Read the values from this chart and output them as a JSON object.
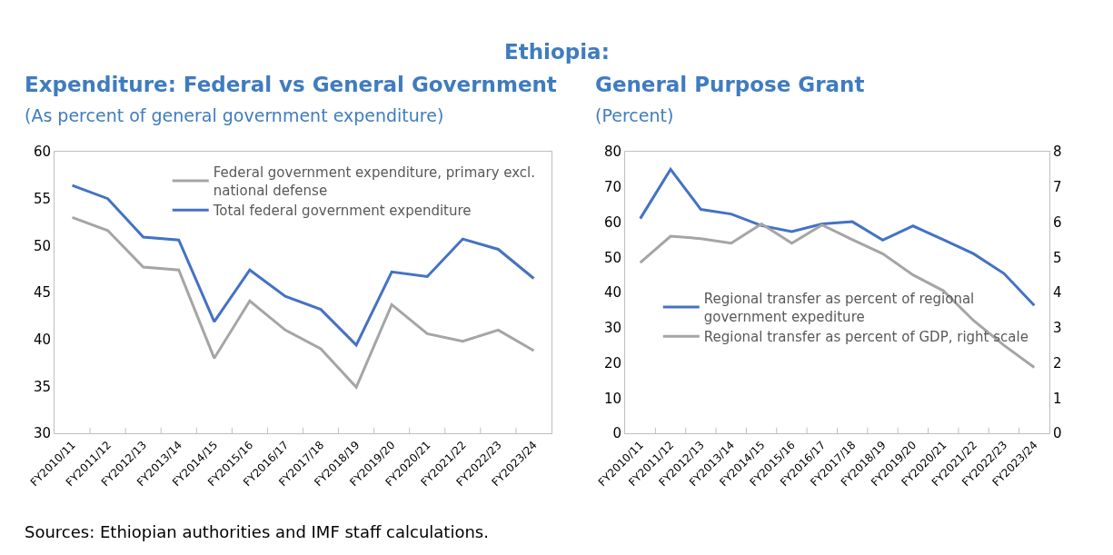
{
  "chart_data": [
    {
      "type": "line",
      "title": "Expenditure: Federal vs General Government",
      "subtitle": "(As percent of general government expenditure)",
      "categories": [
        "FY2010/11",
        "FY2011/12",
        "FY2012/13",
        "FY2013/14",
        "FY2014/15",
        "FY2015/16",
        "FY2016/17",
        "FY2017/18",
        "FY2018/19",
        "FY2019/20",
        "FY2020/21",
        "FY2021/22",
        "FY2022/23",
        "FY2023/24"
      ],
      "series": [
        {
          "name": "Federal government expenditure, primary excl. national defense",
          "color": "#a5a5a5",
          "values": [
            53.0,
            51.6,
            47.7,
            47.4,
            38.0,
            44.1,
            41.0,
            39.0,
            34.9,
            43.7,
            40.6,
            39.8,
            41.0,
            38.8
          ]
        },
        {
          "name": "Total federal government expenditure",
          "color": "#4472c4",
          "values": [
            56.4,
            55.0,
            50.9,
            50.6,
            41.9,
            47.4,
            44.6,
            43.2,
            39.4,
            47.2,
            46.7,
            50.7,
            49.6,
            46.5
          ]
        }
      ],
      "ylim": [
        30,
        60
      ],
      "yticks": [
        30,
        35,
        40,
        45,
        50,
        55,
        60
      ],
      "legend": "top right",
      "annotations": [
        "Ethiopia:",
        "Sources: Ethiopian authorities and IMF staff calculations."
      ]
    },
    {
      "type": "line",
      "title": "General Purpose Grant",
      "subtitle": "(Percent)",
      "categories": [
        "FY2010/11",
        "FY2011/12",
        "FY2012/13",
        "FY2013/14",
        "FY2014/15",
        "FY2015/16",
        "FY2016/17",
        "FY2017/18",
        "FY2018/19",
        "FY2019/20",
        "FY2020/21",
        "FY2021/22",
        "FY2022/23",
        "FY2023/24"
      ],
      "series": [
        {
          "name": "Regional transfer as percent of regional government expediture",
          "color": "#4472c4",
          "values": [
            61,
            75,
            63.6,
            62.3,
            59,
            57.3,
            59.5,
            60.1,
            54.9,
            58.9,
            55,
            51,
            45.4,
            36.3
          ]
        },
        {
          "name": "Regional transfer as percent of GDP, right scale",
          "color": "#a5a5a5",
          "axis": "y2",
          "values": [
            4.85,
            5.6,
            5.53,
            5.4,
            5.95,
            5.4,
            5.92,
            5.5,
            5.1,
            4.5,
            4.05,
            3.2,
            2.5,
            1.87
          ]
        }
      ],
      "ylim": [
        0,
        80
      ],
      "yticks": [
        0,
        10,
        20,
        30,
        40,
        50,
        60,
        70,
        80
      ],
      "y2lim": [
        0,
        8
      ],
      "y2ticks": [
        0,
        1,
        2,
        3,
        4,
        5,
        6,
        7,
        8
      ],
      "legend": "bottom left"
    }
  ]
}
